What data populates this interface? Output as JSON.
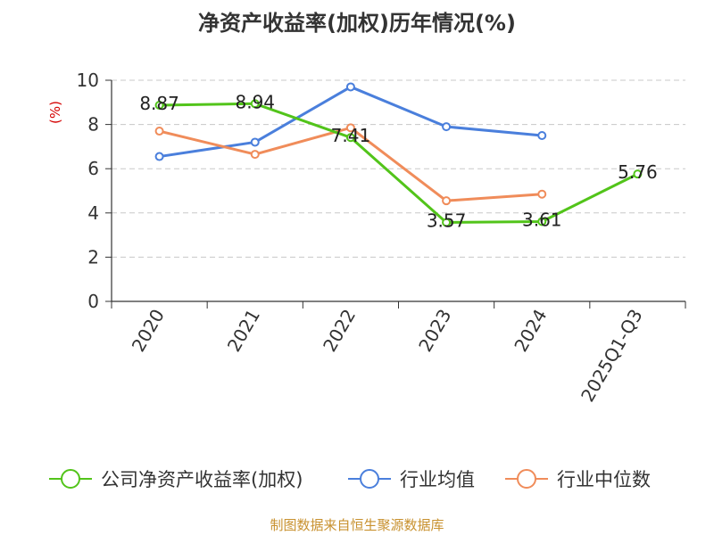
{
  "footer": "制图数据来自恒生聚源数据库",
  "chart_data": {
    "type": "line",
    "title": "净资产收益率(加权)历年情况(%)",
    "ylabel": "(%)",
    "categories": [
      "2020",
      "2021",
      "2022",
      "2023",
      "2024",
      "2025Q1-Q3"
    ],
    "ylim": [
      0,
      10
    ],
    "yticks": [
      0,
      2,
      4,
      6,
      8,
      10
    ],
    "grid": true,
    "legend_position": "bottom",
    "series": [
      {
        "name": "公司净资产收益率(加权)",
        "color": "#52c41a",
        "values": [
          8.87,
          8.94,
          7.41,
          3.57,
          3.61,
          5.76
        ],
        "labels": [
          "8.87",
          "8.94",
          "7.41",
          "3.57",
          "3.61",
          "5.76"
        ]
      },
      {
        "name": "行业均值",
        "color": "#4a7fdc",
        "values": [
          6.55,
          7.2,
          9.7,
          7.9,
          7.5,
          null
        ]
      },
      {
        "name": "行业中位数",
        "color": "#f08c5a",
        "values": [
          7.7,
          6.65,
          7.85,
          4.55,
          4.85,
          null
        ]
      }
    ]
  }
}
